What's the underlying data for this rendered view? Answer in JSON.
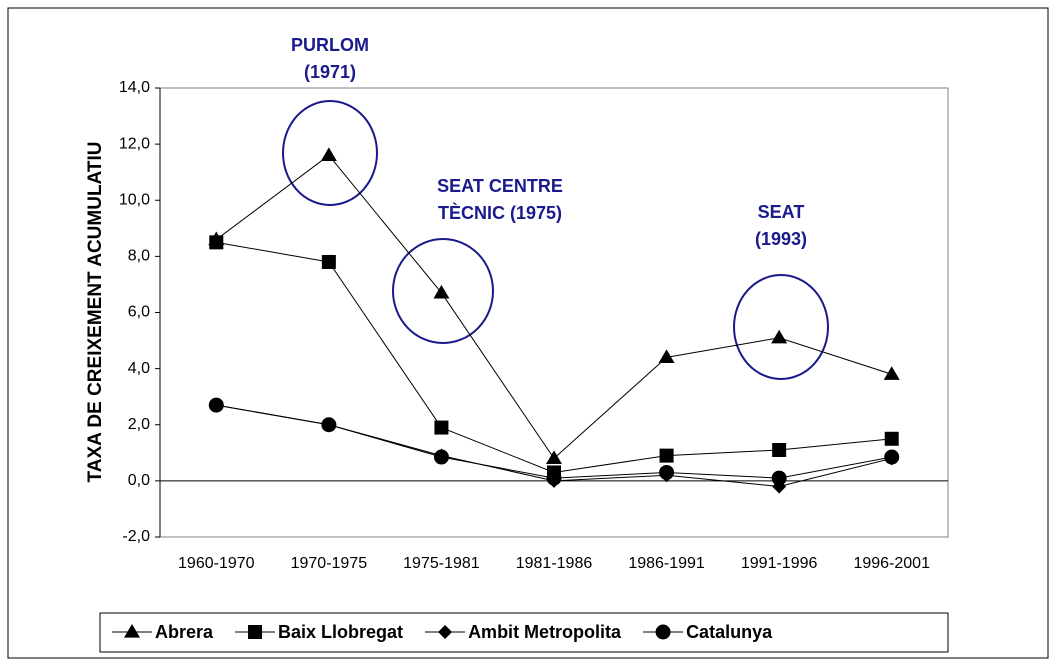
{
  "chart_data": {
    "type": "line",
    "ylabel": "TAXA DE CREIXEMENT ACUMULATIU",
    "categories": [
      "1960-1970",
      "1970-1975",
      "1975-1981",
      "1981-1986",
      "1986-1991",
      "1991-1996",
      "1996-2001"
    ],
    "series": [
      {
        "name": "Abrera",
        "color": "#000000",
        "marker": "triangle",
        "values": [
          8.6,
          11.6,
          6.7,
          0.8,
          4.4,
          5.1,
          3.8
        ]
      },
      {
        "name": "Baix Llobregat",
        "color": "#000000",
        "marker": "square",
        "values": [
          8.5,
          7.8,
          1.9,
          0.3,
          0.9,
          1.1,
          1.5
        ]
      },
      {
        "name": "Ambit Metropolita",
        "color": "#000000",
        "marker": "diamond",
        "values": [
          2.7,
          2.0,
          0.9,
          0.0,
          0.2,
          -0.2,
          0.8
        ]
      },
      {
        "name": "Catalunya",
        "color": "#000000",
        "marker": "circle",
        "values": [
          2.7,
          2.0,
          0.85,
          0.1,
          0.3,
          0.1,
          0.85
        ]
      }
    ],
    "ylim": [
      -2,
      14
    ],
    "yticks": [
      {
        "value": -2,
        "label": "-2,0"
      },
      {
        "value": 0,
        "label": "0,0"
      },
      {
        "value": 2,
        "label": "2,0"
      },
      {
        "value": 4,
        "label": "4,0"
      },
      {
        "value": 6,
        "label": "6,0"
      },
      {
        "value": 8,
        "label": "8,0"
      },
      {
        "value": 10,
        "label": "10,0"
      },
      {
        "value": 12,
        "label": "12,0"
      },
      {
        "value": 14,
        "label": "14,0"
      }
    ],
    "annotations": [
      {
        "lines": [
          "PURLOM",
          "(1971)"
        ]
      },
      {
        "lines": [
          "SEAT CENTRE",
          "TÈCNIC (1975)"
        ]
      },
      {
        "lines": [
          "SEAT",
          "(1993)"
        ]
      }
    ],
    "legend": "bottom"
  }
}
